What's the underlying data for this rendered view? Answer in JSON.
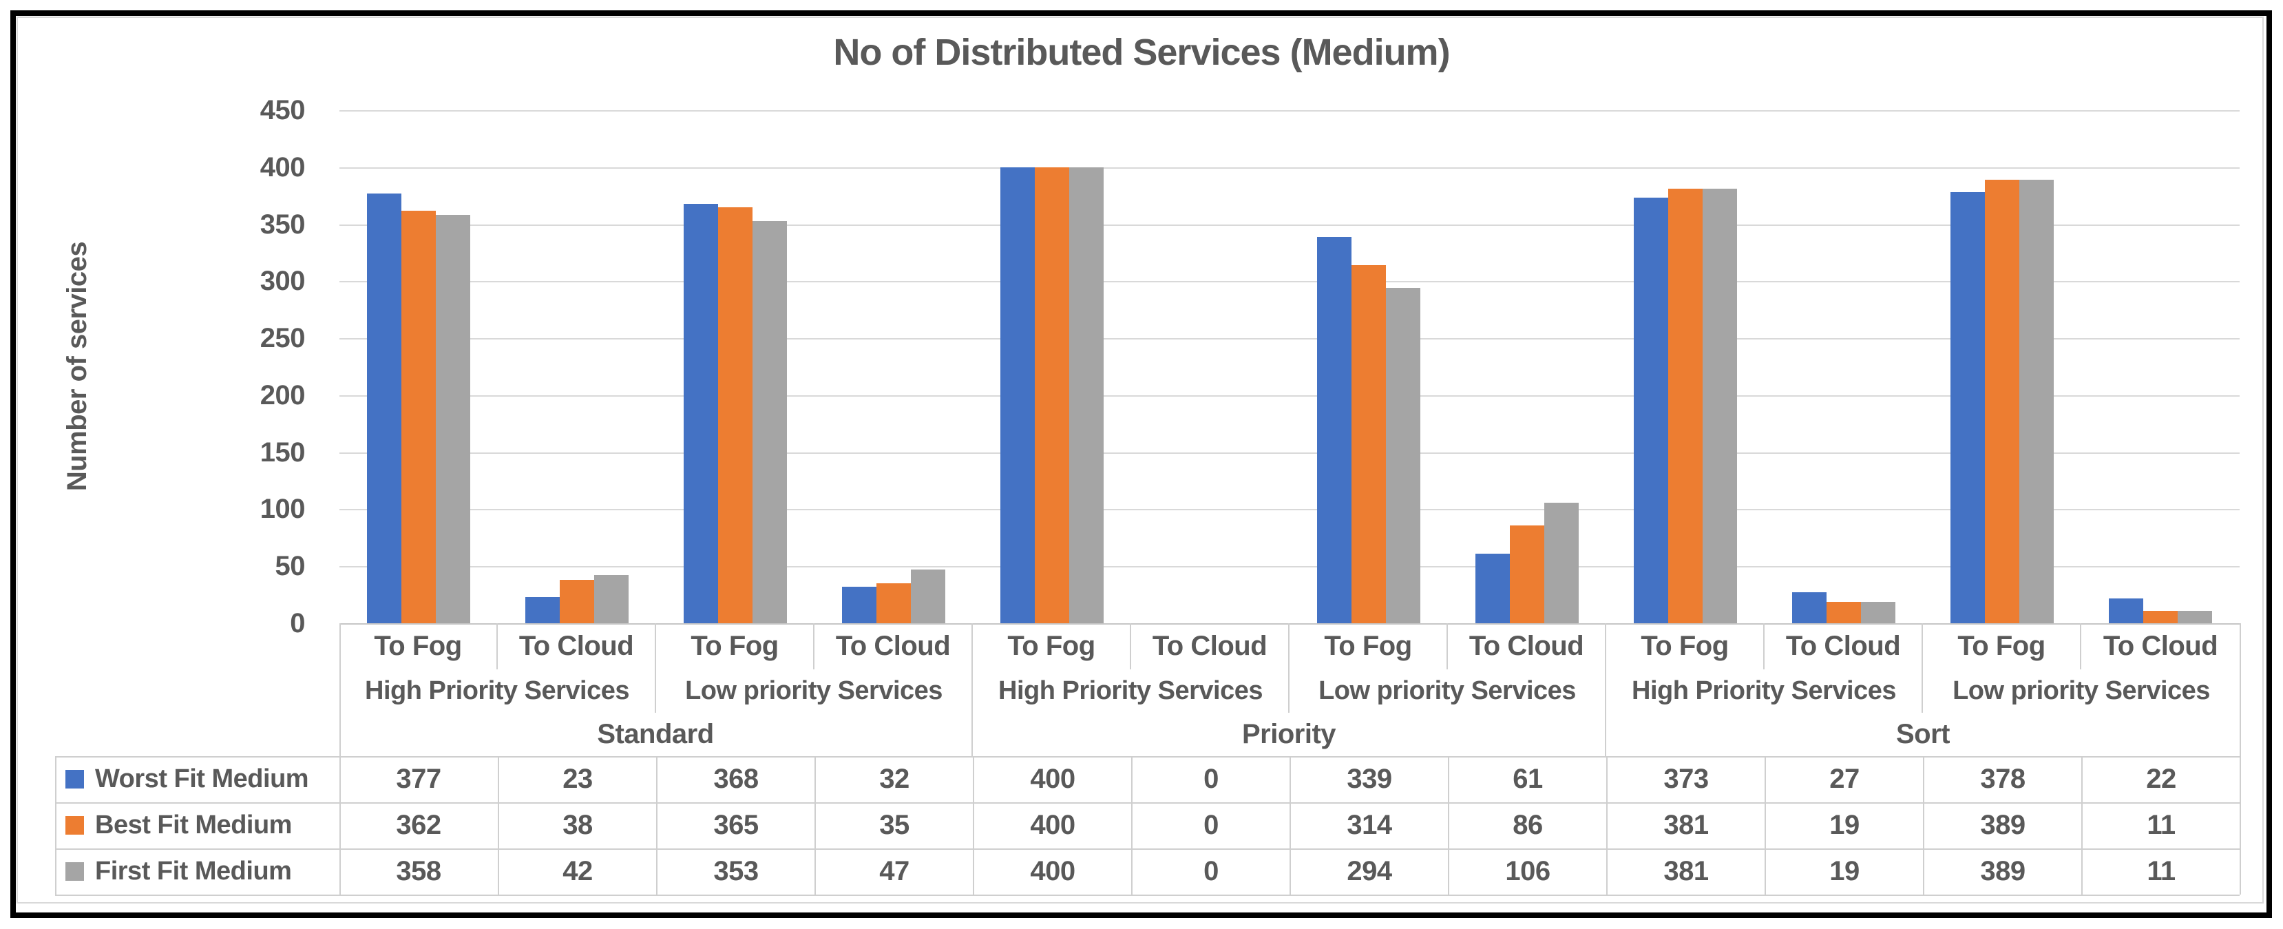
{
  "chart_data": {
    "type": "bar",
    "title": "No of Distributed Services (Medium)",
    "ylabel": "Number of services",
    "ylim": [
      0,
      450
    ],
    "ytick_step": 50,
    "grid": true,
    "legend_position": "data-table-left",
    "data_table_shown": true,
    "category_axis": {
      "level1": [
        "To Fog",
        "To Cloud",
        "To Fog",
        "To Cloud",
        "To Fog",
        "To Cloud",
        "To Fog",
        "To Cloud",
        "To Fog",
        "To Cloud",
        "To Fog",
        "To Cloud"
      ],
      "level2": [
        "High Priority Services",
        "Low priority Services",
        "High Priority Services",
        "Low priority Services",
        "High Priority Services",
        "Low priority Services"
      ],
      "level3": [
        "Standard",
        "Priority",
        "Sort"
      ]
    },
    "series": [
      {
        "name": "Worst Fit Medium",
        "color": "#4472C4",
        "values": [
          377,
          23,
          368,
          32,
          400,
          0,
          339,
          61,
          373,
          27,
          378,
          22
        ]
      },
      {
        "name": "Best Fit Medium",
        "color": "#ED7D31",
        "values": [
          362,
          38,
          365,
          35,
          400,
          0,
          314,
          86,
          381,
          19,
          389,
          11
        ]
      },
      {
        "name": "First Fit Medium",
        "color": "#A5A5A5",
        "values": [
          358,
          42,
          353,
          47,
          400,
          0,
          294,
          106,
          381,
          19,
          389,
          11
        ]
      }
    ]
  },
  "colors": {
    "text": "#595959",
    "gridline": "#D9D9D9",
    "axis_line": "#C6C6C6",
    "table_border": "#CFCFCF",
    "chart_border": "#D9D9D9",
    "frame": "#000000",
    "background": "#FFFFFF"
  }
}
